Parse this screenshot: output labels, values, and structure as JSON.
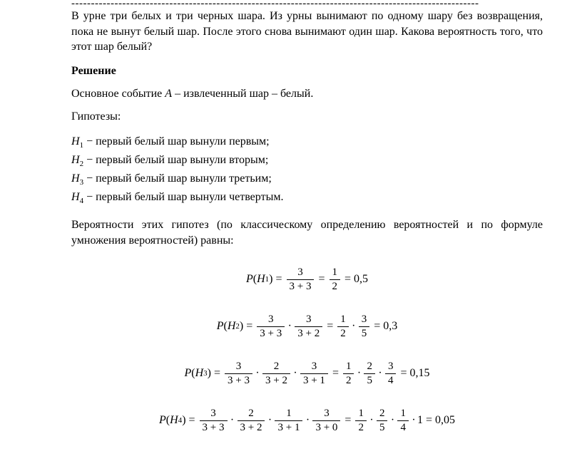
{
  "dash_line": "--------------------------------------------------------------------------------------------------------",
  "problem_text": "В урне три белых и три черных шара. Из урны вынимают по одному шару без возвращения, пока не вынут белый шар. После этого снова вынимают один шар. Какова вероятность того, что этот шар белый?",
  "solution_heading": "Решение",
  "main_event_pre": "Основное событие ",
  "main_event_var": "A",
  "main_event_post": " – извлеченный шар – белый.",
  "hyp_heading": "Гипотезы:",
  "hypotheses": [
    {
      "sym": "H",
      "idx": "1",
      "text": " − первый белый шар вынули первым;"
    },
    {
      "sym": "H",
      "idx": "2",
      "text": " − первый белый шар вынули вторым;"
    },
    {
      "sym": "H",
      "idx": "3",
      "text": " − первый белый шар вынули третьим;"
    },
    {
      "sym": "H",
      "idx": "4",
      "text": " − первый белый шар вынули четвертым."
    }
  ],
  "prob_text": "Вероятности этих гипотез (по классическому определению вероятностей и по формуле умножения вероятностей) равны:",
  "formulas": {
    "f1": {
      "lhs_idx": "1",
      "frac1_num": "3",
      "frac1_den": "3 + 3",
      "frac2_num": "1",
      "frac2_den": "2",
      "res": "0,5"
    },
    "f2": {
      "lhs_idx": "2",
      "t1n": "3",
      "t1d": "3 + 3",
      "t2n": "3",
      "t2d": "3 + 2",
      "s1n": "1",
      "s1d": "2",
      "s2n": "3",
      "s2d": "5",
      "res": "0,3"
    },
    "f3": {
      "lhs_idx": "3",
      "t1n": "3",
      "t1d": "3 + 3",
      "t2n": "2",
      "t2d": "3 + 2",
      "t3n": "3",
      "t3d": "3 + 1",
      "s1n": "1",
      "s1d": "2",
      "s2n": "2",
      "s2d": "5",
      "s3n": "3",
      "s3d": "4",
      "res": "0,15"
    },
    "f4": {
      "lhs_idx": "4",
      "t1n": "3",
      "t1d": "3 + 3",
      "t2n": "2",
      "t2d": "3 + 2",
      "t3n": "1",
      "t3d": "3 + 1",
      "t4n": "3",
      "t4d": "3 + 0",
      "s1n": "1",
      "s1d": "2",
      "s2n": "2",
      "s2d": "5",
      "s3n": "1",
      "s3d": "4",
      "tail": "1",
      "res": "0,05"
    }
  },
  "sym": {
    "P": "P",
    "H": "H",
    "lpar": "(",
    "rpar": ")",
    "eq": "=",
    "dot": "∙"
  }
}
